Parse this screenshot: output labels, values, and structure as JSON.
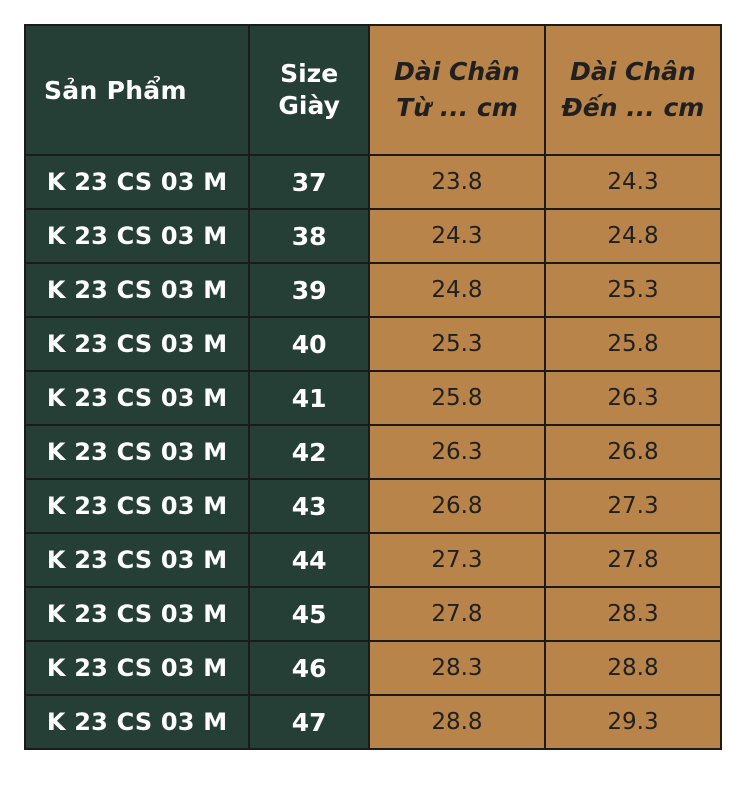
{
  "headers": {
    "product": "Sản Phẩm",
    "size_line1": "Size",
    "size_line2": "Giày",
    "from_line1": "Dài Chân",
    "from_line2": "Từ ... cm",
    "to_line1": "Dài Chân",
    "to_line2": "Đến ... cm"
  },
  "colors": {
    "dark_green": "#253e36",
    "tan": "#b8844a",
    "border": "#1b1b1b"
  },
  "rows": [
    {
      "product": "K 23 CS 03 M",
      "size": "37",
      "from": "23.8",
      "to": "24.3"
    },
    {
      "product": "K 23 CS 03 M",
      "size": "38",
      "from": "24.3",
      "to": "24.8"
    },
    {
      "product": "K 23 CS 03 M",
      "size": "39",
      "from": "24.8",
      "to": "25.3"
    },
    {
      "product": "K 23 CS 03 M",
      "size": "40",
      "from": "25.3",
      "to": "25.8"
    },
    {
      "product": "K 23 CS 03 M",
      "size": "41",
      "from": "25.8",
      "to": "26.3"
    },
    {
      "product": "K 23 CS 03 M",
      "size": "42",
      "from": "26.3",
      "to": "26.8"
    },
    {
      "product": "K 23 CS 03 M",
      "size": "43",
      "from": "26.8",
      "to": "27.3"
    },
    {
      "product": "K 23 CS 03 M",
      "size": "44",
      "from": "27.3",
      "to": "27.8"
    },
    {
      "product": "K 23 CS 03 M",
      "size": "45",
      "from": "27.8",
      "to": "28.3"
    },
    {
      "product": "K 23 CS 03 M",
      "size": "46",
      "from": "28.3",
      "to": "28.8"
    },
    {
      "product": "K 23 CS 03 M",
      "size": "47",
      "from": "28.8",
      "to": "29.3"
    }
  ]
}
